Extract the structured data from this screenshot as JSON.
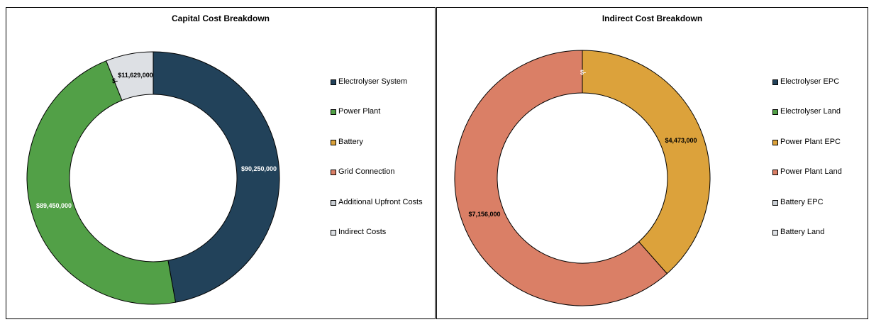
{
  "chart_data": [
    {
      "type": "pie",
      "title": "Capital Cost Breakdown",
      "categories": [
        "Electrolyser System",
        "Power Plant",
        "Battery",
        "Grid Connection",
        "Additional Upfront Costs",
        "Indirect Costs"
      ],
      "values": [
        90250000,
        89450000,
        0,
        0,
        0,
        11629000
      ],
      "data_labels": [
        "$90,250,000",
        "$89,450,000",
        "",
        "",
        "$-",
        "$11,629,000"
      ],
      "colors": [
        "#22425a",
        "#52a047",
        "#d9a13a",
        "#d97f66",
        "#c9ced4",
        "#dde0e4"
      ],
      "legend_position": "right"
    },
    {
      "type": "pie",
      "title": "Indirect Cost Breakdown",
      "categories": [
        "Electrolyser EPC",
        "Electrolyser Land",
        "Power Plant EPC",
        "Power Plant Land",
        "Battery EPC",
        "Battery Land"
      ],
      "values": [
        0,
        0,
        4473000,
        7156000,
        0,
        0
      ],
      "data_labels": [
        "",
        "",
        "$4,473,000",
        "$7,156,000",
        "$-",
        ""
      ],
      "colors": [
        "#22425a",
        "#52a047",
        "#dca23b",
        "#da7f66",
        "#c9ced4",
        "#dde0e4"
      ],
      "legend_position": "right"
    }
  ]
}
